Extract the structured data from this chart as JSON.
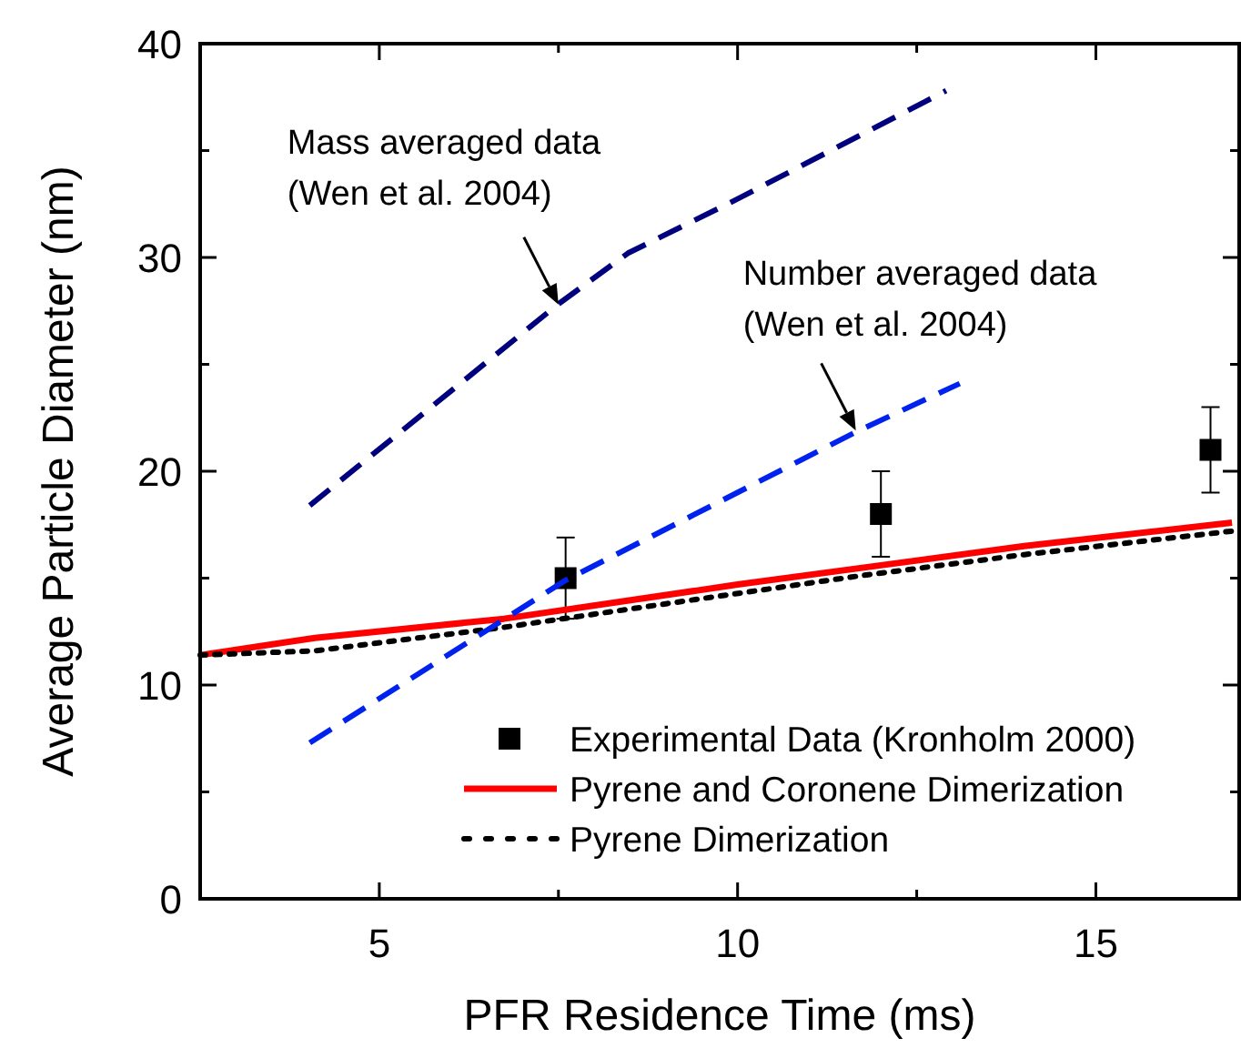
{
  "chart_data": {
    "type": "line",
    "xlabel": "PFR Residence Time (ms)",
    "ylabel": "Average Particle Diameter (nm)",
    "xlim": [
      2.5,
      17
    ],
    "xticks": [
      5,
      {
        "value": 7.5,
        "label": null
      },
      10,
      {
        "value": 12.5,
        "label": null
      },
      15
    ],
    "ylim": [
      0,
      40
    ],
    "yticks": [
      0,
      {
        "value": 5,
        "label": null
      },
      10,
      {
        "value": 15,
        "label": null
      },
      20,
      {
        "value": 25,
        "label": null
      },
      30,
      {
        "value": 35,
        "label": null
      },
      40
    ],
    "grid": false,
    "legend": "bottom right",
    "annotations": [
      {
        "text": "Mass averaged data\n(Wen et al. 2004)",
        "x": 7.5,
        "y": 27.8
      },
      {
        "text": "Number averaged data\n(Wen et al. 2004)",
        "x": 11.65,
        "y": 21.9
      }
    ],
    "series": [
      {
        "name": "Experimental Data (Kronholm 2000)",
        "type": "scatter",
        "marker": "square",
        "color": "#000000",
        "x": [
          7.6,
          12,
          16.6
        ],
        "values": [
          15,
          18,
          21
        ],
        "errors": [
          1.9,
          2,
          2
        ]
      },
      {
        "name": "Pyrene and Coronene Dimerization",
        "line_style": "solid",
        "color": "#ff0000",
        "x": [
          2.5,
          4.1,
          6.74,
          10,
          12,
          14,
          16.9
        ],
        "values": [
          11.4,
          12.2,
          13.1,
          14.7,
          15.6,
          16.5,
          17.6
        ]
      },
      {
        "name": "Pyrene Dimerization",
        "line_style": "dotted",
        "color": "#000000",
        "x": [
          2.5,
          4.1,
          6.74,
          9,
          11.69,
          14,
          16.9
        ],
        "values": [
          11.4,
          11.6,
          12.7,
          13.8,
          15.1,
          16.1,
          17.2
        ]
      },
      {
        "line_style": "dashed",
        "color": "#00007f",
        "x": [
          4.03,
          7.49,
          8.47,
          9.92,
          12.91
        ],
        "values": [
          18.4,
          27.8,
          30.2,
          32.6,
          37.8
        ]
      },
      {
        "line_style": "dashed",
        "color": "#0022ee",
        "x": [
          4.03,
          7.6,
          11.69,
          13.1
        ],
        "values": [
          7.3,
          14.9,
          21.9,
          24.1
        ]
      }
    ]
  }
}
